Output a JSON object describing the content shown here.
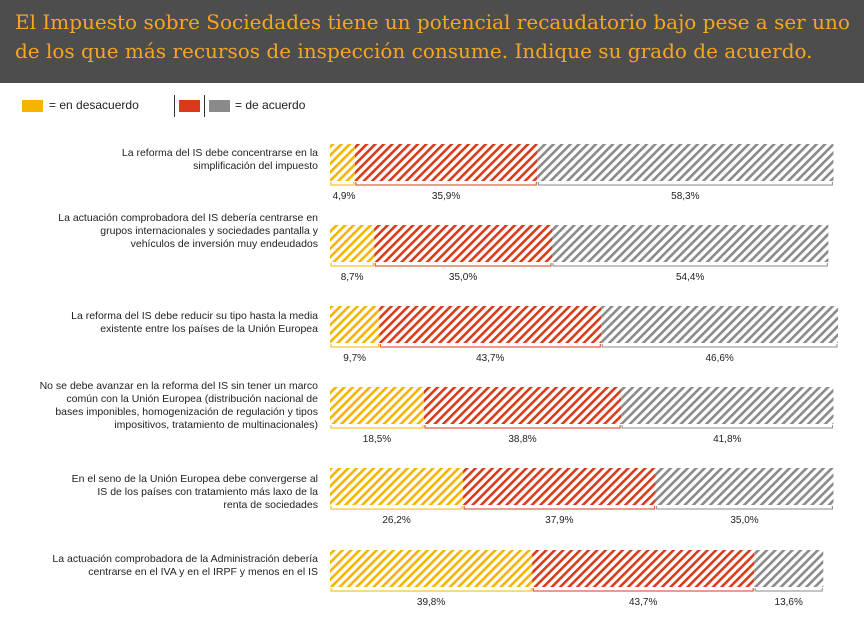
{
  "header": {
    "title": "El Impuesto sobre Sociedades tiene un potencial recaudatorio bajo pese a ser uno de los que más recursos de inspección consume. Indique su grado de acuerdo."
  },
  "legend": {
    "disagree_label": "= en desacuerdo",
    "agree_label": "= de acuerdo"
  },
  "colors": {
    "disagree": "#f5b400",
    "agree_red": "#d93a1a",
    "agree_gray": "#8a8a8a",
    "header_bg": "#4d4d4d",
    "title": "#f5a623"
  },
  "chart_data": {
    "type": "bar",
    "orientation": "horizontal-stacked",
    "title": "El Impuesto sobre Sociedades tiene un potencial recaudatorio bajo pese a ser uno de los que más recursos de inspección consume. Indique su grado de acuerdo.",
    "xlim": [
      0,
      100
    ],
    "categories": [
      "La reforma del IS debe concentrarse en la simplificación del impuesto",
      "La actuación comprobadora del IS debería centrarse en grupos internacionales y sociedades pantalla y vehículos de inversión muy endeudados",
      "La reforma del IS debe reducir su tipo hasta la media existente entre los países de la Unión Europea",
      "No se debe avanzar en la reforma del IS sin tener un marco común con la Unión Europea (distribución nacional de bases imponibles, homogenización de regulación y tipos impositivos, tratamiento de multinacionales)",
      "En el seno de la Unión Europea debe convergerse al IS de los países con tratamiento más laxo de la renta de sociedades",
      "La actuación comprobadora de la Administración debería centrarse en el IVA y en el IRPF y menos en el IS"
    ],
    "series": [
      {
        "name": "en desacuerdo",
        "color": "#f5b400",
        "values": [
          4.9,
          8.7,
          9.7,
          18.5,
          26.2,
          39.8
        ],
        "labels": [
          "4,9%",
          "8,7%",
          "9,7%",
          "18,5%",
          "26,2%",
          "39,8%"
        ]
      },
      {
        "name": "de acuerdo (rojo)",
        "color": "#d93a1a",
        "values": [
          35.9,
          35.0,
          43.7,
          38.8,
          37.9,
          43.7
        ],
        "labels": [
          "35,9%",
          "35,0%",
          "43,7%",
          "38,8%",
          "37,9%",
          "43,7%"
        ]
      },
      {
        "name": "de acuerdo (gris)",
        "color": "#8a8a8a",
        "values": [
          58.3,
          54.4,
          46.6,
          41.8,
          35.0,
          13.6
        ],
        "labels": [
          "58,3%",
          "54,4%",
          "46,6%",
          "41,8%",
          "35,0%",
          "13,6%"
        ]
      }
    ]
  },
  "question_labels": [
    [
      "La reforma del IS debe concentrarse en la",
      "simplificación del impuesto"
    ],
    [
      "La actuación comprobadora del IS debería centrarse en",
      "grupos internacionales y sociedades pantalla y",
      "vehículos de inversión muy endeudados"
    ],
    [
      "La reforma del IS debe reducir su tipo hasta la media",
      "existente entre los países de la Unión Europea"
    ],
    [
      "No se debe avanzar en la reforma del IS sin tener un marco",
      "común con la Unión Europea (distribución nacional de",
      "bases imponibles, homogenización de regulación y tipos",
      "impositivos, tratamiento de multinacionales)"
    ],
    [
      "En el seno de la Unión Europea debe convergerse al",
      "IS de los países con tratamiento más laxo de la",
      "renta  de sociedades"
    ],
    [
      "La actuación comprobadora de la Administración debería",
      "centrarse en el IVA y en el IRPF y menos en el IS"
    ]
  ]
}
